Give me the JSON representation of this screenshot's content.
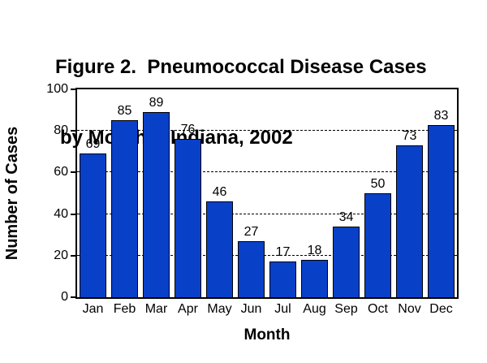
{
  "title": {
    "line1": "Figure 2.  Pneumococcal Disease Cases",
    "line2": "by Month -- Indiana, 2002"
  },
  "chart_data": {
    "type": "bar",
    "title": "Figure 2. Pneumococcal Disease Cases by Month -- Indiana, 2002",
    "categories": [
      "Jan",
      "Feb",
      "Mar",
      "Apr",
      "May",
      "Jun",
      "Jul",
      "Aug",
      "Sep",
      "Oct",
      "Nov",
      "Dec"
    ],
    "values": [
      69,
      85,
      89,
      76,
      46,
      27,
      17,
      18,
      34,
      50,
      73,
      83
    ],
    "xlabel": "Month",
    "ylabel": "Number of Cases",
    "ylim": [
      0,
      100
    ],
    "yticks": [
      0,
      20,
      40,
      60,
      80,
      100
    ],
    "grid": "horizontal-dashed-at-20-40-60-80",
    "legend_position": "none",
    "data_labels": true,
    "bar_color": "#0940C8",
    "bar_border_color": "#000000",
    "text_color": "#000000",
    "background_color": "#FFFFFF"
  }
}
